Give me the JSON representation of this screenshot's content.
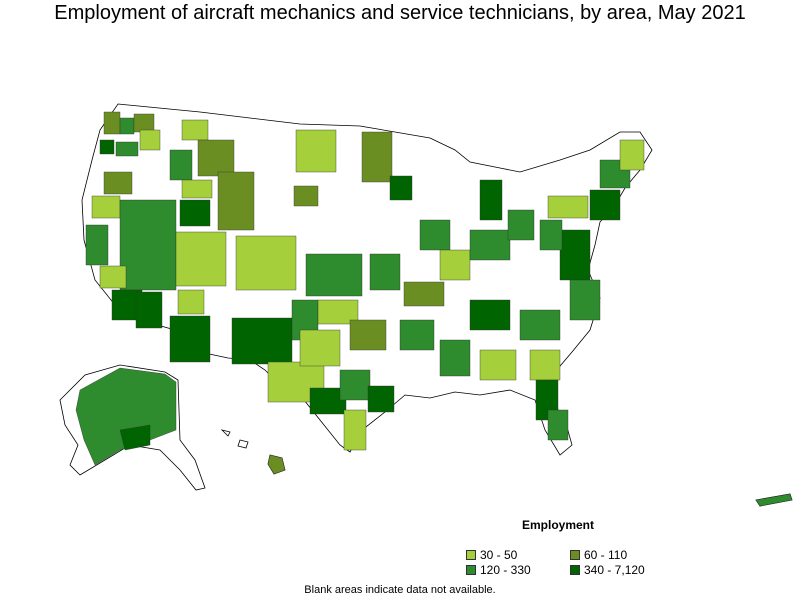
{
  "title": "Employment of aircraft mechanics and service technicians, by area, May 2021",
  "legend": {
    "title": "Employment",
    "items": [
      {
        "label": "30 - 50",
        "color": "#a6cf3c"
      },
      {
        "label": "60 - 110",
        "color": "#6b8e23"
      },
      {
        "label": "120 - 330",
        "color": "#2e8b2e"
      },
      {
        "label": "340 - 7,120",
        "color": "#006400"
      }
    ]
  },
  "footnote": "Blank areas indicate data not available."
}
